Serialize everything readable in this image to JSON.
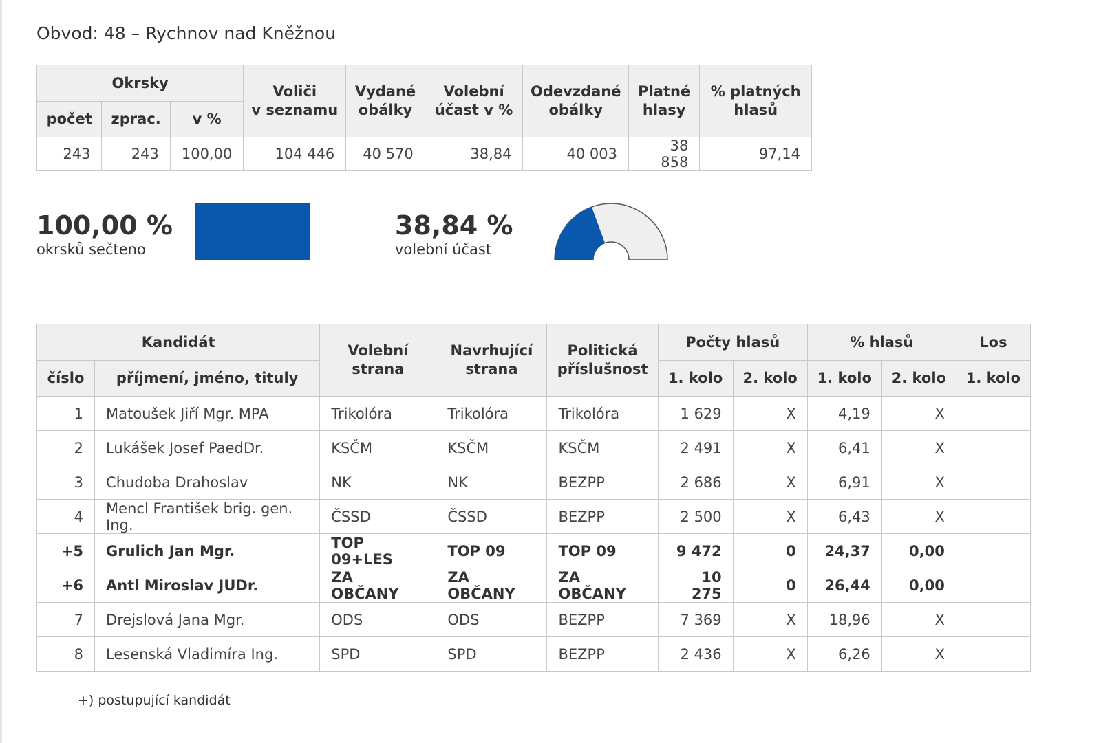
{
  "title": "Obvod: 48 – Rychnov nad Kněžnou",
  "summary": {
    "header_okrsky": "Okrsky",
    "col_pocet": "počet",
    "col_zprac": "zprac.",
    "col_v_pct": "v %",
    "col_volici": [
      "Voliči",
      "v seznamu"
    ],
    "col_vydane": [
      "Vydané",
      "obálky"
    ],
    "col_ucast": [
      "Volební",
      "účast v %"
    ],
    "col_odevzdane": [
      "Odevzdané",
      "obálky"
    ],
    "col_platne": [
      "Platné",
      "hlasy"
    ],
    "col_pct_platnych": [
      "% platných",
      "hlasů"
    ],
    "values": {
      "pocet": "243",
      "zprac": "243",
      "v_pct": "100,00",
      "volici": "104 446",
      "vydane": "40 570",
      "ucast": "38,84",
      "odevzdane": "40 003",
      "platne": "38 858",
      "pct_platnych": "97,14"
    }
  },
  "metrics": {
    "counted": {
      "value": "100,00 %",
      "label": "okrsků sečteno",
      "fraction": 1.0,
      "color": "#0a58ad"
    },
    "turnout": {
      "value": "38,84 %",
      "label": "volební účast",
      "fraction": 0.3884,
      "color": "#0a58ad",
      "track_color": "#efefef"
    }
  },
  "candidates": {
    "header_kandidat": "Kandidát",
    "col_cislo": "číslo",
    "col_jmeno": "příjmení, jméno, tituly",
    "col_volebni": [
      "Volební",
      "strana"
    ],
    "col_navrhujici": [
      "Navrhující",
      "strana"
    ],
    "col_politicka": [
      "Politická",
      "příslušnost"
    ],
    "header_pocty": "Počty hlasů",
    "header_pct": "% hlasů",
    "header_los": "Los",
    "kolo1": "1. kolo",
    "kolo2": "2. kolo",
    "rows": [
      {
        "cislo": "1",
        "jmeno": "Matoušek Jiří Mgr. MPA",
        "volebni": "Trikolóra",
        "navrhujici": "Trikolóra",
        "politicka": "Trikolóra",
        "hlasy1": "1 629",
        "hlasy2": "X",
        "pct1": "4,19",
        "pct2": "X",
        "los": "",
        "advancing": false
      },
      {
        "cislo": "2",
        "jmeno": "Lukášek Josef PaedDr.",
        "volebni": "KSČM",
        "navrhujici": "KSČM",
        "politicka": "KSČM",
        "hlasy1": "2 491",
        "hlasy2": "X",
        "pct1": "6,41",
        "pct2": "X",
        "los": "",
        "advancing": false
      },
      {
        "cislo": "3",
        "jmeno": "Chudoba Drahoslav",
        "volebni": "NK",
        "navrhujici": "NK",
        "politicka": "BEZPP",
        "hlasy1": "2 686",
        "hlasy2": "X",
        "pct1": "6,91",
        "pct2": "X",
        "los": "",
        "advancing": false
      },
      {
        "cislo": "4",
        "jmeno": "Mencl František brig. gen. Ing.",
        "volebni": "ČSSD",
        "navrhujici": "ČSSD",
        "politicka": "BEZPP",
        "hlasy1": "2 500",
        "hlasy2": "X",
        "pct1": "6,43",
        "pct2": "X",
        "los": "",
        "advancing": false
      },
      {
        "cislo": "+5",
        "jmeno": "Grulich Jan Mgr.",
        "volebni": "TOP 09+LES",
        "navrhujici": "TOP 09",
        "politicka": "TOP 09",
        "hlasy1": "9 472",
        "hlasy2": "0",
        "pct1": "24,37",
        "pct2": "0,00",
        "los": "",
        "advancing": true
      },
      {
        "cislo": "+6",
        "jmeno": "Antl Miroslav JUDr.",
        "volebni": "ZA OBČANY",
        "navrhujici": "ZA OBČANY",
        "politicka": "ZA OBČANY",
        "hlasy1": "10 275",
        "hlasy2": "0",
        "pct1": "26,44",
        "pct2": "0,00",
        "los": "",
        "advancing": true
      },
      {
        "cislo": "7",
        "jmeno": "Drejslová Jana Mgr.",
        "volebni": "ODS",
        "navrhujici": "ODS",
        "politicka": "BEZPP",
        "hlasy1": "7 369",
        "hlasy2": "X",
        "pct1": "18,96",
        "pct2": "X",
        "los": "",
        "advancing": false
      },
      {
        "cislo": "8",
        "jmeno": "Lesenská Vladimíra Ing.",
        "volebni": "SPD",
        "navrhujici": "SPD",
        "politicka": "BEZPP",
        "hlasy1": "2 436",
        "hlasy2": "X",
        "pct1": "6,26",
        "pct2": "X",
        "los": "",
        "advancing": false
      }
    ]
  },
  "footnote": "+) postupující kandidát"
}
